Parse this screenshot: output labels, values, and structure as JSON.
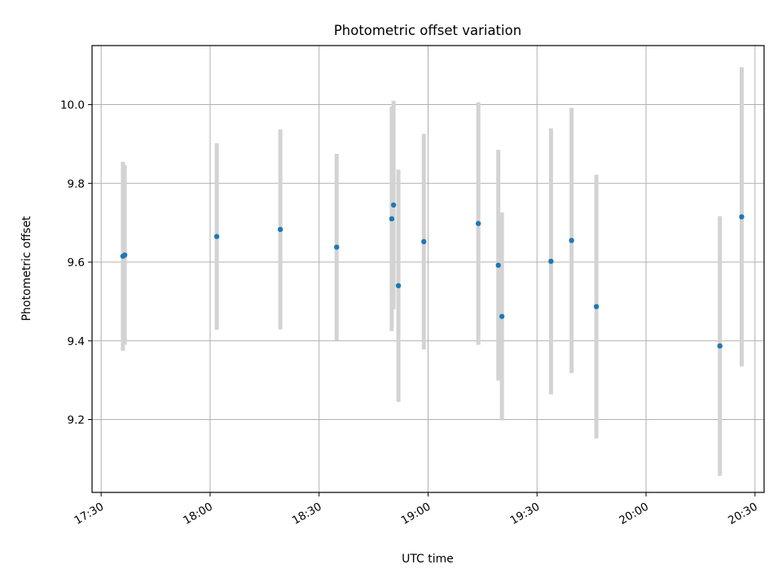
{
  "chart_data": {
    "type": "scatter",
    "title": "Photometric offset variation",
    "xlabel": "UTC time",
    "ylabel": "Photometric offset",
    "x_ticks": [
      "17:30",
      "18:00",
      "18:30",
      "19:00",
      "19:30",
      "20:00",
      "20:30"
    ],
    "y_ticks": [
      "9.2",
      "9.4",
      "9.6",
      "9.8",
      "10.0"
    ],
    "y_tick_values": [
      9.2,
      9.4,
      9.6,
      9.8,
      10.0
    ],
    "xlim": [
      "17:27:30",
      "20:32:30"
    ],
    "ylim": [
      9.015,
      10.15
    ],
    "grid": true,
    "point_color": "#1f77b4",
    "errorbar_color": "#d3d3d3",
    "points": [
      {
        "x": "17:36:00",
        "y": 9.615,
        "yerr": 0.24
      },
      {
        "x": "17:36:30",
        "y": 9.618,
        "yerr": 0.228
      },
      {
        "x": "18:01:50",
        "y": 9.665,
        "yerr": 0.237
      },
      {
        "x": "18:19:20",
        "y": 9.683,
        "yerr": 0.254
      },
      {
        "x": "18:34:50",
        "y": 9.638,
        "yerr": 0.237
      },
      {
        "x": "18:50:00",
        "y": 9.71,
        "yerr": 0.285
      },
      {
        "x": "18:50:30",
        "y": 9.745,
        "yerr": 0.265
      },
      {
        "x": "18:51:50",
        "y": 9.54,
        "yerr": 0.295
      },
      {
        "x": "18:58:50",
        "y": 9.652,
        "yerr": 0.274
      },
      {
        "x": "19:13:50",
        "y": 9.698,
        "yerr": 0.308
      },
      {
        "x": "19:19:20",
        "y": 9.592,
        "yerr": 0.293
      },
      {
        "x": "19:20:20",
        "y": 9.462,
        "yerr": 0.264
      },
      {
        "x": "19:33:50",
        "y": 9.602,
        "yerr": 0.338
      },
      {
        "x": "19:39:30",
        "y": 9.655,
        "yerr": 0.337
      },
      {
        "x": "19:46:20",
        "y": 9.487,
        "yerr": 0.335
      },
      {
        "x": "20:20:20",
        "y": 9.387,
        "yerr": 0.33
      },
      {
        "x": "20:26:20",
        "y": 9.715,
        "yerr": 0.38
      }
    ]
  }
}
